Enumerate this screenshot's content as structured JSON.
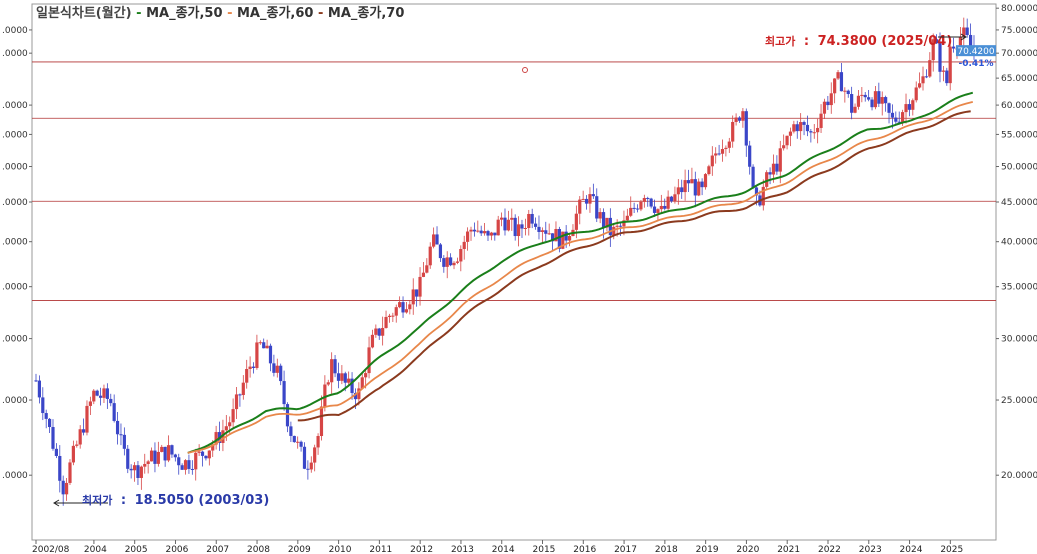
{
  "legend": {
    "prefix": "일본식차트(월간)",
    "items": [
      {
        "label": "MA_종가,50",
        "color": "#1a7f1a"
      },
      {
        "label": "MA_종가,60",
        "color": "#e8874a"
      },
      {
        "label": "MA_종가,70",
        "color": "#8b3a1e"
      }
    ]
  },
  "chart_data": {
    "type": "candlestick",
    "y_scale": "log",
    "ylim": [
      16.5,
      81
    ],
    "grid": false,
    "x_ticks": [
      "2002/08",
      "2004",
      "2005",
      "2006",
      "2007",
      "2008",
      "2009",
      "2010",
      "2011",
      "2012",
      "2013",
      "2014",
      "2015",
      "2016",
      "2017",
      "2018",
      "2019",
      "2020",
      "2021",
      "2022",
      "2023",
      "2024",
      "2025"
    ],
    "x_tick_months": [
      2002.58,
      2004,
      2005,
      2006,
      2007,
      2008,
      2009,
      2010,
      2011,
      2012,
      2013,
      2014,
      2015,
      2016,
      2017,
      2018,
      2019,
      2020,
      2021,
      2022,
      2023,
      2024,
      2025
    ],
    "y_ticks": [
      "80.0000",
      "75.0000",
      "70.0000",
      "65.0000",
      "60.0000",
      "55.0000",
      "50.0000",
      "45.0000",
      "40.0000",
      "35.0000",
      "30.0000",
      "25.0000",
      "20.0000"
    ],
    "y_tick_values": [
      80,
      75,
      70,
      65,
      60,
      55,
      50,
      45,
      40,
      35,
      30,
      25,
      20
    ],
    "left_tick_labels": [
      ".0000",
      ".0000",
      ".0000",
      ".0000",
      ".0000",
      ".0000",
      ".0000",
      ".0000",
      ".0000",
      ".0000",
      ".0000",
      ".0000"
    ],
    "left_tick_values": [
      75,
      70,
      60,
      55,
      50,
      45,
      40,
      35,
      30,
      25,
      20
    ],
    "horizontal_lines": [
      68.2,
      57.7,
      45.1,
      33.6
    ],
    "last_price": {
      "label": "70.4200",
      "value": 70.42
    },
    "change": {
      "label": "-0.41%"
    },
    "annotations": {
      "high": {
        "label": "최고가",
        "separator": ":",
        "value": "74.3800",
        "date": "(2025/04)",
        "text": "74.3800 (2025/04)"
      },
      "low": {
        "label": "최저가",
        "separator": ":",
        "value": "18.5050",
        "date": "(2003/03)",
        "text": "18.5050 (2003/03)"
      }
    },
    "price_anchors": [
      [
        2002.58,
        26.5
      ],
      [
        2002.9,
        23.0
      ],
      [
        2003.25,
        19.3
      ],
      [
        2003.6,
        22.0
      ],
      [
        2004.0,
        25.5
      ],
      [
        2004.4,
        25.0
      ],
      [
        2004.7,
        21.5
      ],
      [
        2005.0,
        20.3
      ],
      [
        2005.4,
        21.0
      ],
      [
        2005.8,
        21.5
      ],
      [
        2006.2,
        20.7
      ],
      [
        2006.6,
        21.2
      ],
      [
        2007.0,
        22.2
      ],
      [
        2007.4,
        23.8
      ],
      [
        2007.8,
        27.5
      ],
      [
        2008.1,
        29.5
      ],
      [
        2008.5,
        27.0
      ],
      [
        2008.8,
        23.0
      ],
      [
        2009.2,
        20.5
      ],
      [
        2009.5,
        22.5
      ],
      [
        2009.8,
        28.0
      ],
      [
        2010.2,
        26.0
      ],
      [
        2010.5,
        25.5
      ],
      [
        2010.8,
        29.5
      ],
      [
        2011.2,
        32.0
      ],
      [
        2011.6,
        33.5
      ],
      [
        2012.0,
        35.0
      ],
      [
        2012.3,
        40.0
      ],
      [
        2012.6,
        38.0
      ],
      [
        2012.9,
        38.5
      ],
      [
        2013.3,
        42.0
      ],
      [
        2013.7,
        40.0
      ],
      [
        2014.0,
        43.0
      ],
      [
        2014.4,
        41.0
      ],
      [
        2014.7,
        43.5
      ],
      [
        2015.1,
        41.5
      ],
      [
        2015.5,
        40.0
      ],
      [
        2015.8,
        43.0
      ],
      [
        2016.1,
        46.0
      ],
      [
        2016.4,
        43.0
      ],
      [
        2016.7,
        41.0
      ],
      [
        2017.0,
        42.0
      ],
      [
        2017.5,
        46.5
      ],
      [
        2017.9,
        43.5
      ],
      [
        2018.3,
        46.0
      ],
      [
        2018.6,
        48.0
      ],
      [
        2018.9,
        46.0
      ],
      [
        2019.3,
        53.0
      ],
      [
        2019.7,
        56.0
      ],
      [
        2019.9,
        60.0
      ],
      [
        2020.2,
        44.0
      ],
      [
        2020.5,
        48.0
      ],
      [
        2020.8,
        51.0
      ],
      [
        2021.2,
        57.0
      ],
      [
        2021.6,
        55.0
      ],
      [
        2021.9,
        60.0
      ],
      [
        2022.3,
        65.0
      ],
      [
        2022.6,
        59.0
      ],
      [
        2022.9,
        62.5
      ],
      [
        2023.3,
        60.0
      ],
      [
        2023.6,
        57.0
      ],
      [
        2023.9,
        60.0
      ],
      [
        2024.3,
        64.0
      ],
      [
        2024.6,
        72.5
      ],
      [
        2024.9,
        63.0
      ],
      [
        2025.0,
        72.0
      ],
      [
        2025.3,
        74.0
      ],
      [
        2025.58,
        70.42
      ]
    ],
    "ma_anchors": {
      "ma50": [
        [
          2006.3,
          21.3
        ],
        [
          2007.0,
          22.2
        ],
        [
          2008.2,
          24.2
        ],
        [
          2009.0,
          24.4
        ],
        [
          2010.0,
          25.5
        ],
        [
          2011.0,
          28.3
        ],
        [
          2012.0,
          31.0
        ],
        [
          2013.0,
          34.5
        ],
        [
          2014.0,
          37.8
        ],
        [
          2015.0,
          40.0
        ],
        [
          2016.0,
          41.2
        ],
        [
          2017.0,
          42.3
        ],
        [
          2018.0,
          43.5
        ],
        [
          2019.0,
          45.0
        ],
        [
          2020.0,
          46.5
        ],
        [
          2021.0,
          49.0
        ],
        [
          2022.0,
          52.5
        ],
        [
          2023.0,
          55.8
        ],
        [
          2024.0,
          57.0
        ],
        [
          2025.0,
          60.5
        ],
        [
          2025.58,
          62.5
        ]
      ],
      "ma60": [
        [
          2006.3,
          21.3
        ],
        [
          2007.0,
          22.0
        ],
        [
          2008.2,
          23.8
        ],
        [
          2009.0,
          24.0
        ],
        [
          2010.0,
          24.6
        ],
        [
          2011.0,
          26.8
        ],
        [
          2012.0,
          29.5
        ],
        [
          2013.0,
          33.0
        ],
        [
          2014.0,
          36.0
        ],
        [
          2015.0,
          38.6
        ],
        [
          2016.0,
          40.3
        ],
        [
          2017.0,
          41.6
        ],
        [
          2018.0,
          42.7
        ],
        [
          2019.0,
          44.0
        ],
        [
          2020.0,
          45.3
        ],
        [
          2021.0,
          47.8
        ],
        [
          2022.0,
          51.0
        ],
        [
          2023.0,
          54.0
        ],
        [
          2024.0,
          56.3
        ],
        [
          2025.0,
          59.0
        ],
        [
          2025.58,
          60.8
        ]
      ],
      "ma70": [
        [
          2009.0,
          23.6
        ],
        [
          2010.0,
          23.9
        ],
        [
          2011.0,
          25.8
        ],
        [
          2012.0,
          28.5
        ],
        [
          2013.0,
          31.8
        ],
        [
          2014.0,
          34.8
        ],
        [
          2015.0,
          37.4
        ],
        [
          2016.0,
          39.4
        ],
        [
          2017.0,
          41.0
        ],
        [
          2018.0,
          42.1
        ],
        [
          2019.0,
          43.3
        ],
        [
          2020.0,
          44.3
        ],
        [
          2021.0,
          46.5
        ],
        [
          2022.0,
          49.5
        ],
        [
          2023.0,
          52.7
        ],
        [
          2024.0,
          55.2
        ],
        [
          2025.0,
          57.8
        ],
        [
          2025.58,
          59.2
        ]
      ]
    }
  }
}
